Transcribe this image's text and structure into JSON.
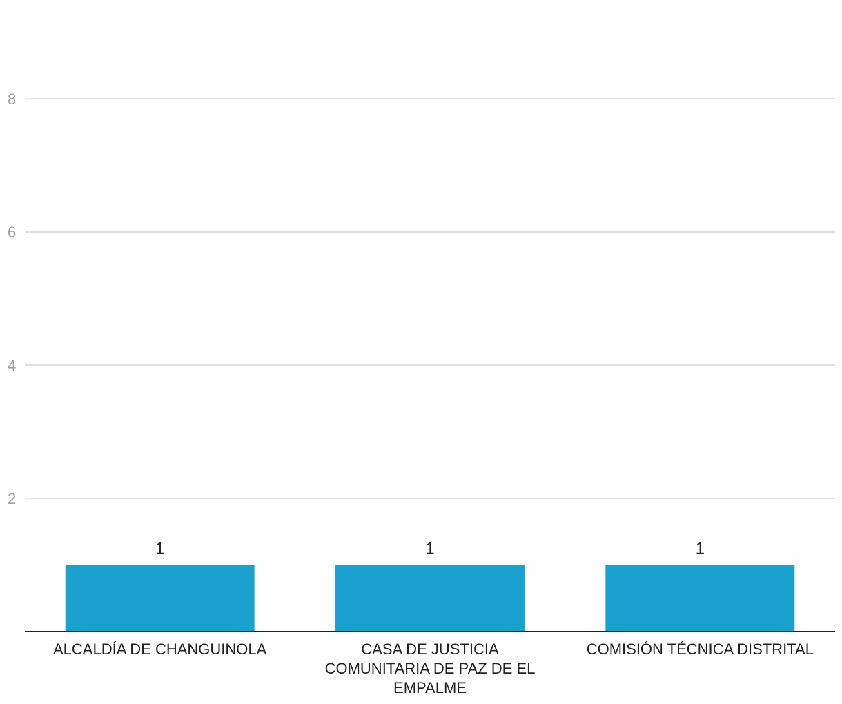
{
  "chart_data": {
    "type": "bar",
    "title": "",
    "xlabel": "",
    "ylabel": "",
    "categories": [
      "ALCALDÍA DE CHANGUINOLA",
      "CASA DE JUSTICIA COMUNITARIA DE PAZ DE EL EMPALME",
      "COMISIÓN TÉCNICA DISTRITAL"
    ],
    "category_lines": [
      [
        "ALCALDÍA DE CHANGUINOLA"
      ],
      [
        "CASA DE JUSTICIA",
        "COMUNITARIA DE PAZ DE EL",
        "EMPALME"
      ],
      [
        "COMISIÓN TÉCNICA DISTRITAL"
      ]
    ],
    "values": [
      1,
      1,
      1
    ],
    "data_labels": [
      "1",
      "1",
      "1"
    ],
    "ylim": [
      0,
      9.5
    ],
    "yticks": [
      2,
      4,
      6,
      8
    ],
    "ytick_labels": [
      "2",
      "4",
      "6",
      "8"
    ],
    "grid": true,
    "legend": "none",
    "colors": {
      "bar": "#1aa1cf",
      "grid": "#e0e0e0",
      "axis": "#212121",
      "tick_text": "#9e9e9e",
      "label_text": "#212121"
    }
  }
}
